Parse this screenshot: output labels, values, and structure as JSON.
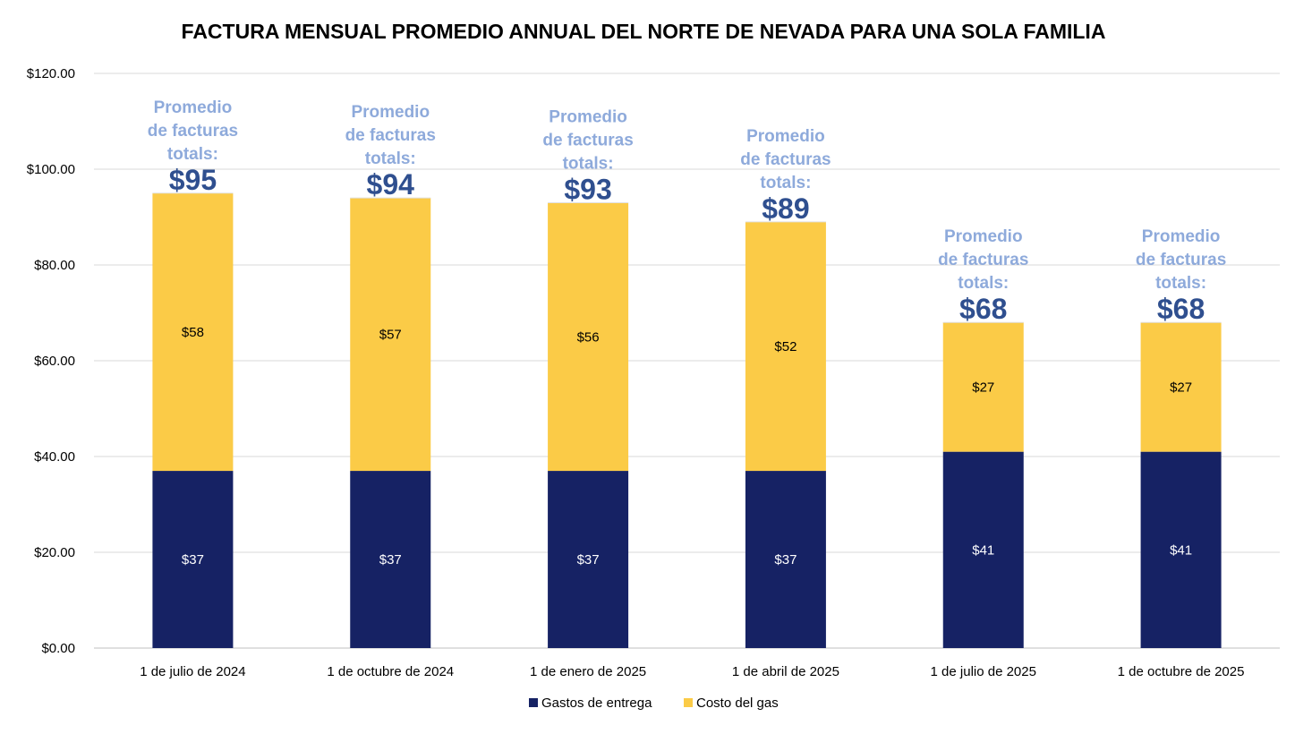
{
  "chart_data": {
    "type": "bar",
    "stacked": true,
    "title": "FACTURA MENSUAL PROMEDIO ANNUAL DEL NORTE DE NEVADA PARA UNA SOLA FAMILIA",
    "categories": [
      "1 de julio de 2024",
      "1 de octubre de 2024",
      "1 de enero de 2025",
      "1 de abril de 2025",
      "1 de julio de 2025",
      "1 de octubre de 2025"
    ],
    "series": [
      {
        "name": "Gastos de entrega",
        "color": "#162264",
        "label_color": "#ffffff",
        "values": [
          37,
          37,
          37,
          37,
          41,
          41
        ],
        "labels": [
          "$37",
          "$37",
          "$37",
          "$37",
          "$41",
          "$41"
        ]
      },
      {
        "name": "Costo del gas",
        "color": "#fbcb47",
        "label_color": "#000000",
        "values": [
          58,
          57,
          56,
          52,
          27,
          27
        ],
        "labels": [
          "$58",
          "$57",
          "$56",
          "$52",
          "$27",
          "$27"
        ]
      }
    ],
    "totals": [
      95,
      94,
      93,
      89,
      68,
      68
    ],
    "annotations": [
      {
        "lines": [
          "Promedio",
          "de facturas",
          "totals:"
        ],
        "value": "$95"
      },
      {
        "lines": [
          "Promedio",
          "de facturas",
          "totals:"
        ],
        "value": "$94"
      },
      {
        "lines": [
          "Promedio",
          "de facturas",
          "totals:"
        ],
        "value": "$93"
      },
      {
        "lines": [
          "Promedio",
          "de facturas",
          "totals:"
        ],
        "value": "$89"
      },
      {
        "lines": [
          "Promedio",
          "de facturas",
          "totals:"
        ],
        "value": "$68"
      },
      {
        "lines": [
          "Promedio",
          "de facturas",
          "totals:"
        ],
        "value": "$68"
      }
    ],
    "ylim": [
      0,
      120
    ],
    "yticks": [
      0,
      20,
      40,
      60,
      80,
      100,
      120
    ],
    "ytick_labels": [
      "$0.00",
      "$20.00",
      "$40.00",
      "$60.00",
      "$80.00",
      "$100.00",
      "$120.00"
    ],
    "xlabel": "",
    "ylabel": "",
    "grid": true,
    "legend_position": "bottom"
  }
}
